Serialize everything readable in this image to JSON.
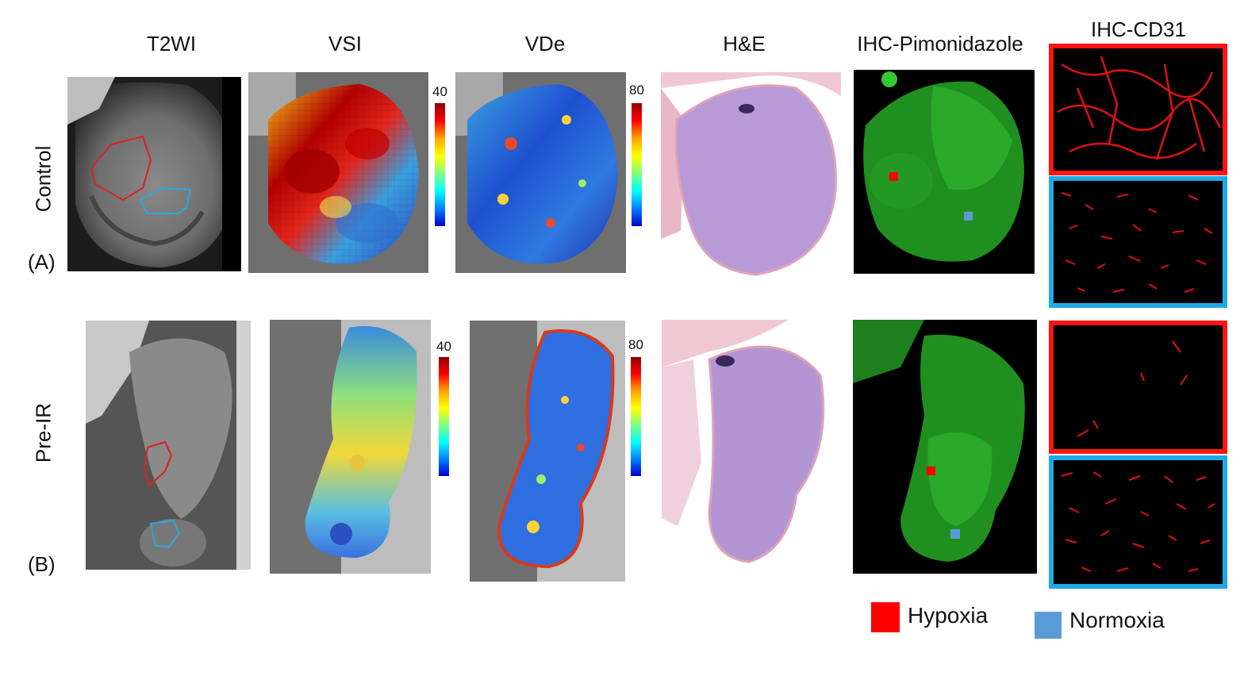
{
  "columns": {
    "t2wi": "T2WI",
    "vsi": "VSI",
    "vde": "VDe",
    "he": "H&E",
    "pimo": "IHC-Pimonidazole",
    "cd31": "IHC-CD31"
  },
  "rows": {
    "control": {
      "label": "Control",
      "panel": "(A)"
    },
    "preir": {
      "label": "Pre-IR",
      "panel": "(B)"
    }
  },
  "colorbars": {
    "vsi_max": "40",
    "vde_max": "80"
  },
  "legend": {
    "hypoxia": {
      "label": "Hypoxia",
      "color": "#ff0000"
    },
    "normoxia": {
      "label": "Normoxia",
      "color": "#5b9bd5"
    }
  },
  "colors": {
    "hypoxia_frame": "#ff1414",
    "normoxia_frame": "#1eaae6",
    "roi_red": "#e02020",
    "roi_blue": "#2aa7e0"
  }
}
